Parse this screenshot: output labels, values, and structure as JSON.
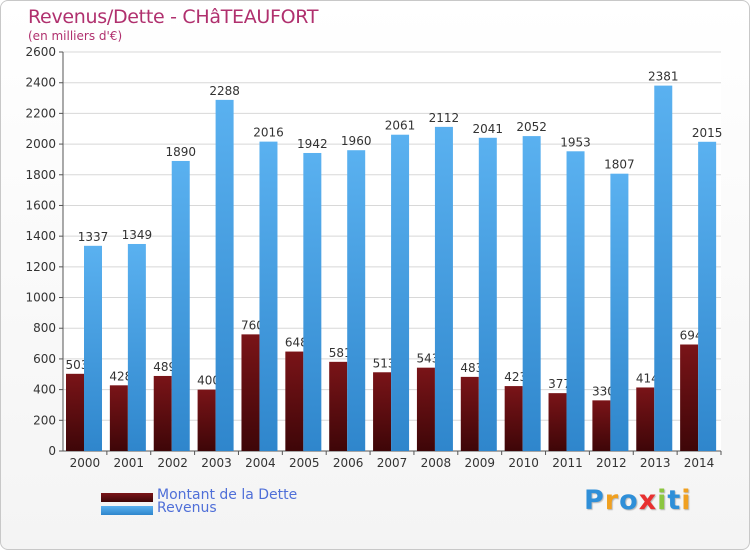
{
  "chart_data": {
    "type": "bar",
    "title": "Revenus/Dette - CHâTEAUFORT",
    "subtitle": "(en milliers d'€)",
    "categories": [
      "2000",
      "2001",
      "2002",
      "2003",
      "2004",
      "2005",
      "2006",
      "2007",
      "2008",
      "2009",
      "2010",
      "2011",
      "2012",
      "2013",
      "2014"
    ],
    "series": [
      {
        "name": "Montant de la Dette",
        "color": "#6b0e12",
        "values": [
          503,
          428,
          489,
          400,
          760,
          648,
          581,
          513,
          543,
          483,
          423,
          377,
          330,
          414,
          694
        ]
      },
      {
        "name": "Revenus",
        "color": "#4aa3e8",
        "values": [
          1337,
          1349,
          1890,
          2288,
          2016,
          1942,
          1960,
          2061,
          2112,
          2041,
          2052,
          1953,
          1807,
          2381,
          2015
        ]
      }
    ],
    "ylim": [
      0,
      2600
    ],
    "yticks": [
      0,
      200,
      400,
      600,
      800,
      1000,
      1200,
      1400,
      1600,
      1800,
      2000,
      2200,
      2400,
      2600
    ],
    "grid": true,
    "legend_position": "bottom-left",
    "xlabel": "",
    "ylabel": ""
  },
  "logo": {
    "text": "Proxiti",
    "colors": [
      "#2f8fd8",
      "#f0a020",
      "#2f8fd8",
      "#e83030",
      "#8cc640",
      "#2f8fd8",
      "#f0a020"
    ]
  }
}
